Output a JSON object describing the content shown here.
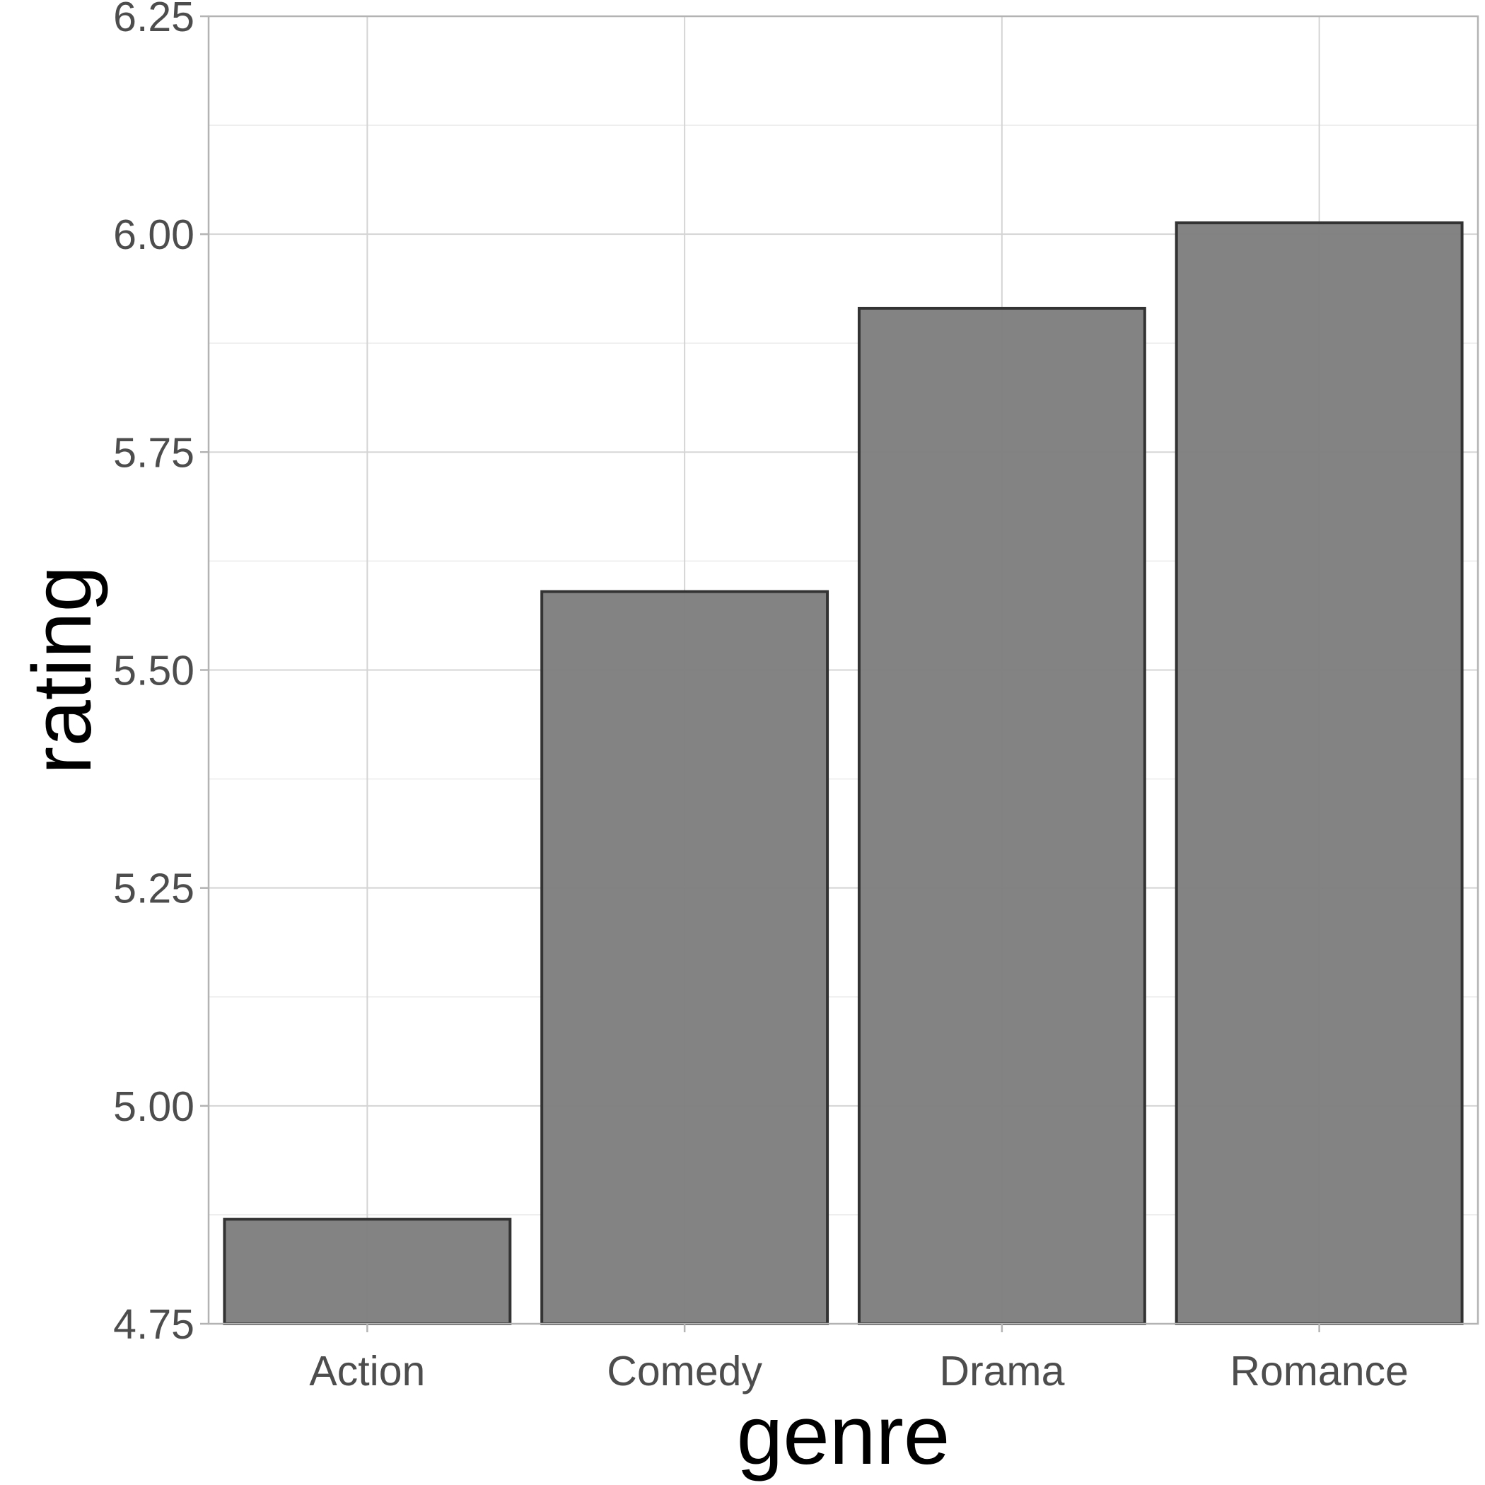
{
  "chart_data": {
    "type": "bar",
    "title": "",
    "xlabel": "genre",
    "ylabel": "rating",
    "categories": [
      "Action",
      "Comedy",
      "Drama",
      "Romance"
    ],
    "values": [
      4.87,
      5.59,
      5.915,
      6.013
    ],
    "ylim": [
      4.75,
      6.25
    ],
    "yticks": [
      4.75,
      5.0,
      5.25,
      5.5,
      5.75,
      6.0,
      6.25
    ],
    "ytick_labels": [
      "4.75",
      "5.00",
      "5.25",
      "5.50",
      "5.75",
      "6.00",
      "6.25"
    ],
    "grid": true,
    "legend": "none",
    "colors": {
      "bar_fill": "#7f7f7f",
      "bar_stroke": "#333333",
      "grid_major": "#d4d4d4",
      "grid_minor": "#ebebeb",
      "panel_border": "#b3b3b3",
      "tick_text": "#4d4d4d",
      "axis_title": "#000000"
    }
  }
}
